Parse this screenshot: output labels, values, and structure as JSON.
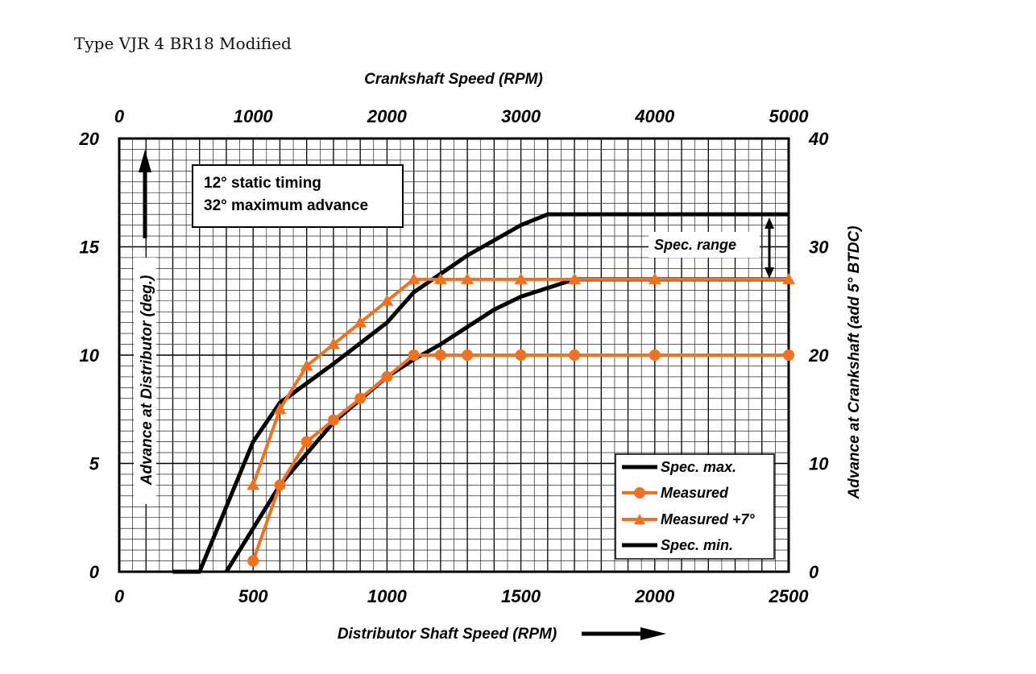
{
  "caption": "Type VJR 4 BR18 Modified",
  "colors": {
    "spec": "#000000",
    "measured": "#f2711c",
    "grid": "#000000"
  },
  "chart_data": {
    "type": "line",
    "title": "",
    "x_top_label": "Crankshaft Speed (RPM)",
    "xlabel": "Distributor Shaft Speed (RPM)",
    "ylabel_left": "Advance at Distributor (deg.)",
    "ylabel_right": "Advance at Crankshaft (add 5° BTDC)",
    "xlim": [
      0,
      2500
    ],
    "ylim": [
      0,
      20
    ],
    "x_ticks": [
      "0",
      "500",
      "1000",
      "1500",
      "2000",
      "2500"
    ],
    "x_top_ticks": [
      "0",
      "1000",
      "2000",
      "3000",
      "4000",
      "5000"
    ],
    "y_left_ticks": [
      "0",
      "5",
      "10",
      "15",
      "20"
    ],
    "y_right_ticks": [
      "0",
      "10",
      "20",
      "30",
      "40"
    ],
    "annotation_lines": [
      "12° static timing",
      "32° maximum advance"
    ],
    "spec_range_label": "Spec. range",
    "grid": true,
    "legend_position": "bottom-right",
    "series": [
      {
        "name": "Spec. max.",
        "marker": "none",
        "x": [
          200,
          300,
          500,
          600,
          800,
          1000,
          1100,
          1300,
          1500,
          1600,
          2500
        ],
        "y": [
          0,
          0,
          6,
          7.8,
          9.6,
          11.5,
          12.9,
          14.6,
          16.0,
          16.5,
          16.5
        ]
      },
      {
        "name": "Measured",
        "marker": "circle",
        "x": [
          500,
          600,
          700,
          800,
          900,
          1000,
          1100,
          1200,
          1300,
          1500,
          1700,
          2000,
          2500
        ],
        "y": [
          0.5,
          4,
          6,
          7,
          8,
          9,
          10,
          10,
          10,
          10,
          10,
          10,
          10
        ]
      },
      {
        "name": "Measured +7°",
        "marker": "triangle",
        "x": [
          500,
          600,
          700,
          800,
          900,
          1000,
          1100,
          1200,
          1300,
          1500,
          1700,
          2000,
          2500
        ],
        "y": [
          4,
          7.5,
          9.5,
          10.5,
          11.5,
          12.5,
          13.5,
          13.5,
          13.5,
          13.5,
          13.5,
          13.5,
          13.5
        ]
      },
      {
        "name": "Spec. min.",
        "marker": "none",
        "x": [
          400,
          600,
          800,
          1000,
          1100,
          1200,
          1300,
          1400,
          1500,
          1600,
          1700,
          2500
        ],
        "y": [
          0,
          4,
          6.9,
          9.0,
          9.8,
          10.5,
          11.3,
          12.1,
          12.7,
          13.1,
          13.5,
          13.5
        ]
      }
    ]
  }
}
